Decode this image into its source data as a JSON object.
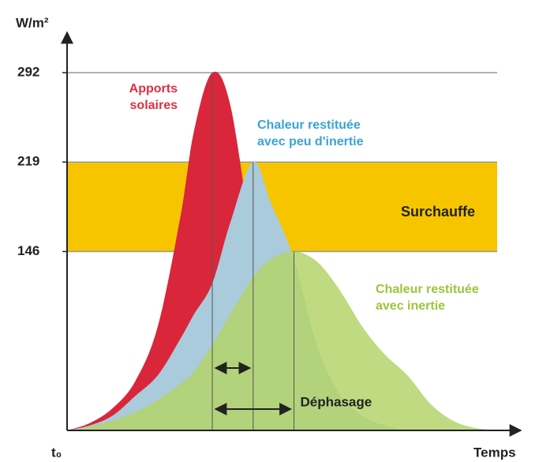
{
  "chart_data": {
    "type": "area",
    "y_label": "W/m²",
    "x_label": "Temps",
    "origin_label": "t₀",
    "ylim": [
      0,
      330
    ],
    "xlim": [
      0,
      100
    ],
    "yticks": [
      146,
      219,
      292
    ],
    "x": [
      0,
      5,
      10,
      15,
      20,
      25,
      28,
      32,
      36,
      41,
      45,
      50,
      55,
      60,
      65,
      70,
      75,
      80,
      85,
      90,
      95
    ],
    "series": [
      {
        "name": "Apports solaires",
        "color": "#d9263a",
        "label_color": "#e0303f",
        "values": [
          0,
          6,
          18,
          40,
          85,
          175,
          245,
          292,
          265,
          150,
          80,
          30,
          10,
          3,
          0,
          0,
          0,
          0,
          0,
          0,
          0
        ]
      },
      {
        "name": "Chaleur restituée avec peu d'inertie",
        "color": "#a9cbdb",
        "label_color": "#3aa3d9",
        "values": [
          0,
          4,
          12,
          28,
          45,
          75,
          95,
          120,
          170,
          219,
          185,
          140,
          70,
          30,
          12,
          4,
          0,
          0,
          0,
          0,
          0
        ]
      },
      {
        "name": "Chaleur restituée avec inertie",
        "color": "#b4d46a",
        "label_color": "#9cc53a",
        "values": [
          0,
          3,
          8,
          15,
          25,
          38,
          48,
          70,
          95,
          125,
          140,
          146,
          138,
          115,
          85,
          62,
          45,
          22,
          8,
          2,
          0
        ]
      }
    ],
    "band": {
      "label": "Surchauffe",
      "range": [
        146,
        219
      ],
      "color": "#f6c500"
    },
    "annotation": "Déphasage"
  }
}
